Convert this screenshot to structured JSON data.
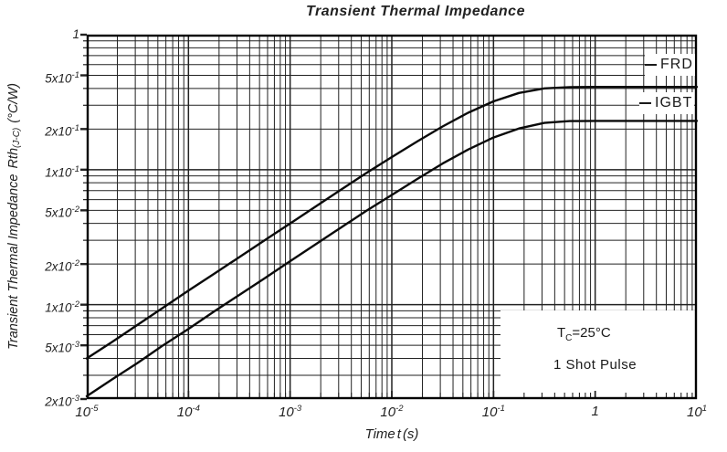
{
  "chart_data": {
    "type": "line",
    "title": "Transient Thermal Impedance",
    "xlabel": {
      "pre": "Time",
      "sym": "t",
      "unit": "(s)"
    },
    "ylabel": {
      "main": "Transient Thermal Impedance",
      "sym": "Rth",
      "sub": "(J-C)",
      "unit": "(°C/W)"
    },
    "xscale": "log",
    "yscale": "log",
    "xlim": [
      1e-05,
      10
    ],
    "ylim": [
      0.002,
      1
    ],
    "grid": true,
    "x_ticks": [
      {
        "v": 1e-05,
        "base": "10",
        "exp": "-5"
      },
      {
        "v": 0.0001,
        "base": "10",
        "exp": "-4"
      },
      {
        "v": 0.001,
        "base": "10",
        "exp": "-3"
      },
      {
        "v": 0.01,
        "base": "10",
        "exp": "-2"
      },
      {
        "v": 0.1,
        "base": "10",
        "exp": "-1"
      },
      {
        "v": 1,
        "base": "1",
        "exp": ""
      },
      {
        "v": 10,
        "base": "10",
        "exp": "1"
      }
    ],
    "y_ticks": [
      {
        "v": 1,
        "base": "1",
        "exp": ""
      },
      {
        "v": 0.5,
        "base": "5x10",
        "exp": "-1"
      },
      {
        "v": 0.2,
        "base": "2x10",
        "exp": "-1"
      },
      {
        "v": 0.1,
        "base": "1x10",
        "exp": "-1"
      },
      {
        "v": 0.05,
        "base": "5x10",
        "exp": "-2"
      },
      {
        "v": 0.02,
        "base": "2x10",
        "exp": "-2"
      },
      {
        "v": 0.01,
        "base": "1x10",
        "exp": "-2"
      },
      {
        "v": 0.005,
        "base": "5x10",
        "exp": "-3"
      },
      {
        "v": 0.002,
        "base": "2x10",
        "exp": "-3"
      }
    ],
    "series": [
      {
        "name": "FRD",
        "plateau": 0.41,
        "x": [
          1e-05,
          1.78e-05,
          3.16e-05,
          5.62e-05,
          0.0001,
          0.000178,
          0.000316,
          0.000562,
          0.001,
          0.00178,
          0.00316,
          0.00562,
          0.01,
          0.0178,
          0.0316,
          0.0562,
          0.1,
          0.178,
          0.316,
          0.562,
          1,
          3.16,
          10
        ],
        "y": [
          0.004,
          0.0053,
          0.0071,
          0.0095,
          0.0127,
          0.0169,
          0.0225,
          0.03,
          0.04,
          0.0533,
          0.071,
          0.0945,
          0.124,
          0.162,
          0.209,
          0.264,
          0.321,
          0.37,
          0.4,
          0.409,
          0.41,
          0.41,
          0.41
        ]
      },
      {
        "name": "IGBT",
        "plateau": 0.23,
        "x": [
          1e-05,
          1.78e-05,
          3.16e-05,
          5.62e-05,
          0.0001,
          0.000178,
          0.000316,
          0.000562,
          0.001,
          0.00178,
          0.00316,
          0.00562,
          0.01,
          0.0178,
          0.0316,
          0.0562,
          0.1,
          0.178,
          0.316,
          0.562,
          1,
          3.16,
          10
        ],
        "y": [
          0.0021,
          0.0028,
          0.0037,
          0.005,
          0.0066,
          0.0089,
          0.0118,
          0.0157,
          0.021,
          0.028,
          0.0373,
          0.0496,
          0.065,
          0.0854,
          0.111,
          0.141,
          0.173,
          0.202,
          0.222,
          0.229,
          0.23,
          0.23,
          0.23
        ]
      }
    ],
    "annotation": {
      "line1_pre": "T",
      "line1_sub": "C",
      "line1_post": "=25°C",
      "line2": "1 Shot Pulse"
    },
    "colors": {
      "line": "#0a0a0a",
      "grid": "#222222",
      "background": "#ffffff"
    }
  }
}
